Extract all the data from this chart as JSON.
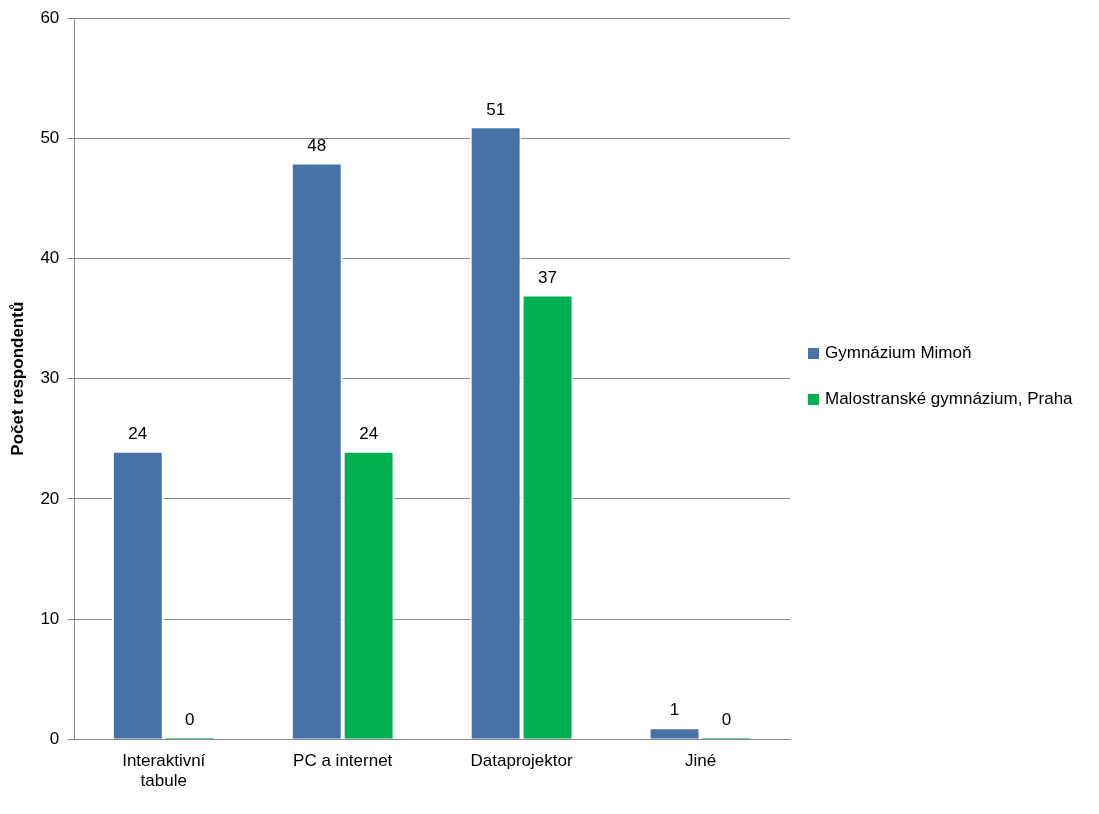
{
  "chart_data": {
    "type": "bar",
    "ylabel": "Počet respondentů",
    "categories": [
      "Interaktivní tabule",
      "PC a internet",
      "Dataprojektor",
      "Jiné"
    ],
    "series": [
      {
        "name": "Gymnázium Mimoň",
        "color": "#4672a8",
        "values": [
          24,
          48,
          51,
          1
        ]
      },
      {
        "name": "Malostranské gymnázium, Praha",
        "color": "#00b050",
        "values": [
          0,
          24,
          37,
          0
        ]
      }
    ],
    "ylim": [
      0,
      60
    ],
    "yticks": [
      0,
      10,
      20,
      30,
      40,
      50,
      60
    ],
    "grid": "y",
    "legend": "right",
    "data_labels": true
  }
}
